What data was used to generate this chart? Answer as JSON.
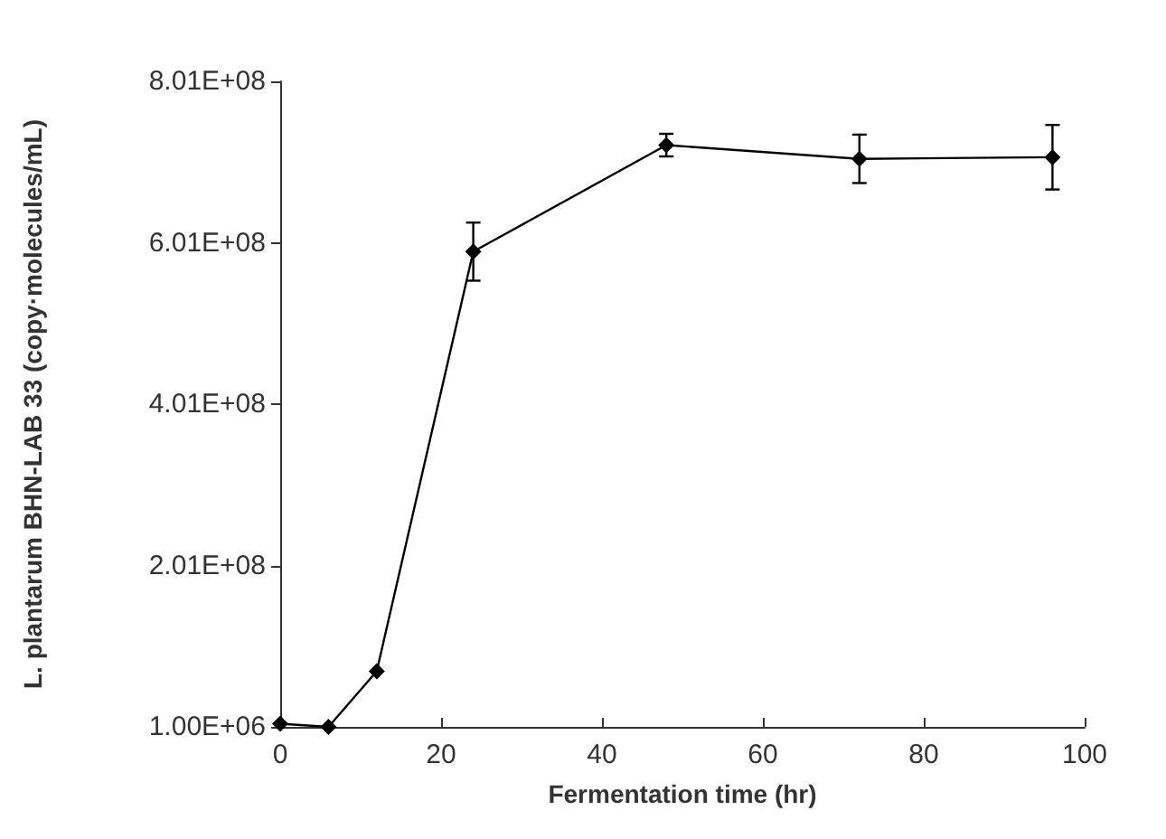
{
  "chart_data": {
    "type": "line",
    "xlabel": "Fermentation time (hr)",
    "ylabel": "L. plantarum BHN-LAB 33 (copy·molecules/mL)",
    "x": [
      0,
      6,
      12,
      24,
      48,
      72,
      96
    ],
    "series": [
      {
        "color": "#000000",
        "values": [
          5000000,
          1000000,
          70000000,
          590000000,
          722000000,
          705000000,
          707000000
        ],
        "errors": [
          null,
          null,
          null,
          36000000,
          14000000,
          30000000,
          40000000
        ]
      }
    ],
    "xlim": [
      0,
      100
    ],
    "xticks": [
      0,
      20,
      40,
      60,
      80,
      100
    ],
    "ylim": [
      1000000,
      801000000
    ],
    "yticks": [
      {
        "value": 1000000,
        "label": "1.00E+06"
      },
      {
        "value": 201000000,
        "label": "2.01E+08"
      },
      {
        "value": 401000000,
        "label": "4.01E+08"
      },
      {
        "value": 601000000,
        "label": "6.01E+08"
      },
      {
        "value": 801000000,
        "label": "8.01E+08"
      }
    ],
    "grid": false,
    "marker": "diamond",
    "line_style": "solid"
  }
}
